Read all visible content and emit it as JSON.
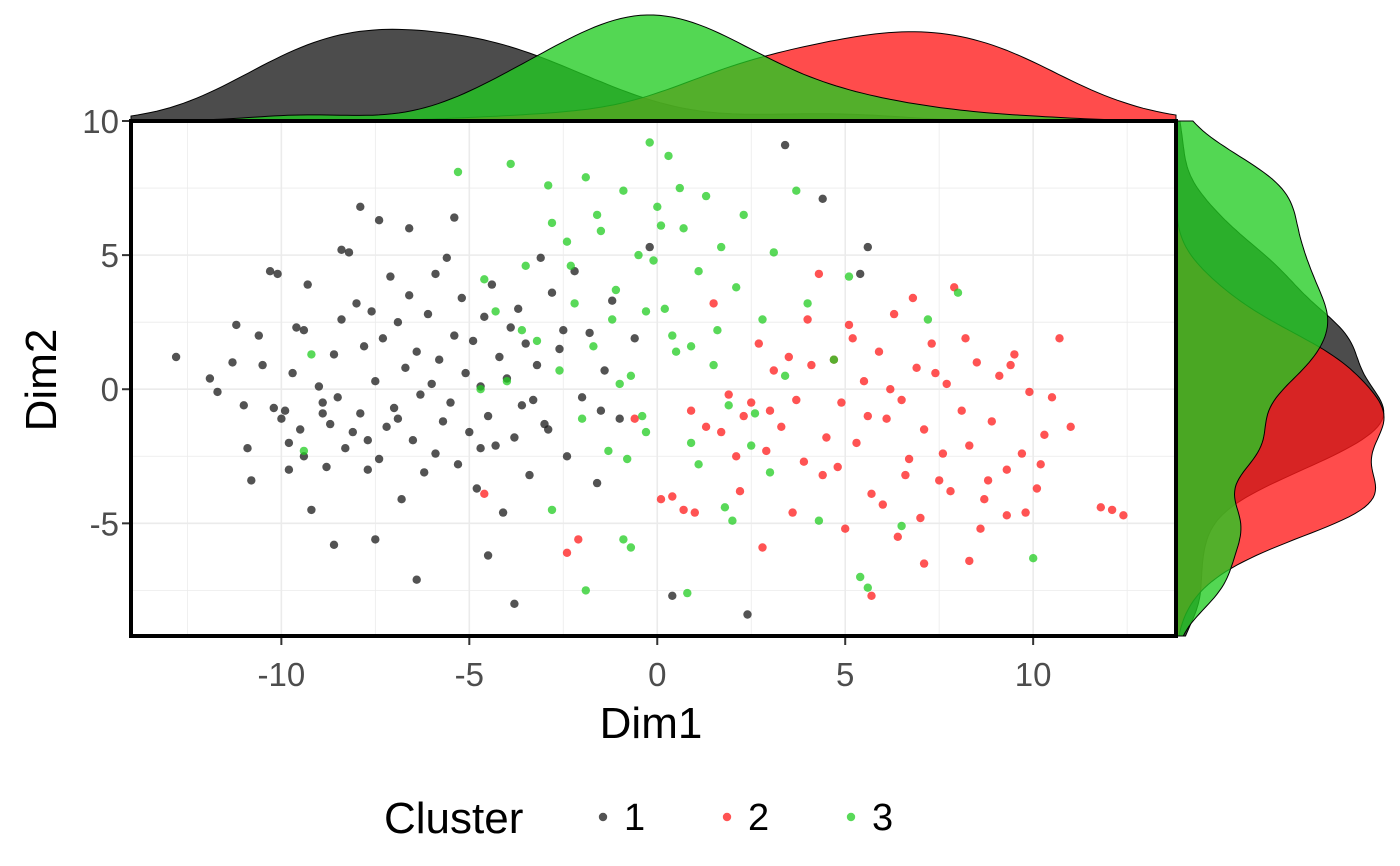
{
  "chart_data": {
    "type": "scatter",
    "title": "",
    "xlabel": "Dim1",
    "ylabel": "Dim2",
    "xlim": [
      -14,
      13.8
    ],
    "ylim": [
      -9.2,
      10
    ],
    "x_ticks": [
      -10,
      -5,
      0,
      5,
      10
    ],
    "x_tick_labels": [
      "-10",
      "-5",
      "0",
      "5",
      "10"
    ],
    "y_ticks": [
      -5,
      0,
      5,
      10
    ],
    "y_tick_labels": [
      "-5",
      "0",
      "5",
      "10"
    ],
    "grid": true,
    "marginal_density": {
      "top": true,
      "right": true
    },
    "legend": {
      "title": "Cluster",
      "position": "bottom",
      "entries": [
        "1",
        "2",
        "3"
      ]
    },
    "series": [
      {
        "name": "1",
        "color": "#1a1a1a",
        "points": [
          [
            -12.8,
            1.2
          ],
          [
            -11.9,
            0.4
          ],
          [
            -11.7,
            -0.1
          ],
          [
            -11.3,
            1.0
          ],
          [
            -11.2,
            2.4
          ],
          [
            -11.0,
            -0.6
          ],
          [
            -10.9,
            -2.2
          ],
          [
            -10.8,
            -3.4
          ],
          [
            -10.6,
            2.0
          ],
          [
            -10.5,
            0.9
          ],
          [
            -10.3,
            4.4
          ],
          [
            -10.1,
            4.3
          ],
          [
            -10.0,
            -1.1
          ],
          [
            -9.9,
            -0.8
          ],
          [
            -9.8,
            -2.0
          ],
          [
            -9.7,
            0.6
          ],
          [
            -9.6,
            2.3
          ],
          [
            -9.5,
            -1.5
          ],
          [
            -9.4,
            2.2
          ],
          [
            -9.3,
            3.9
          ],
          [
            -9.2,
            -4.5
          ],
          [
            -9.0,
            0.1
          ],
          [
            -8.9,
            -0.5
          ],
          [
            -8.8,
            -2.9
          ],
          [
            -8.7,
            -1.3
          ],
          [
            -8.6,
            1.3
          ],
          [
            -8.5,
            -0.3
          ],
          [
            -8.4,
            2.6
          ],
          [
            -8.3,
            -2.2
          ],
          [
            -8.2,
            5.1
          ],
          [
            -8.1,
            -1.6
          ],
          [
            -8.0,
            3.2
          ],
          [
            -7.9,
            -0.9
          ],
          [
            -7.8,
            1.6
          ],
          [
            -7.7,
            -3.0
          ],
          [
            -7.6,
            2.9
          ],
          [
            -7.5,
            0.3
          ],
          [
            -7.4,
            -2.6
          ],
          [
            -7.3,
            1.9
          ],
          [
            -7.2,
            -1.4
          ],
          [
            -7.1,
            4.2
          ],
          [
            -7.0,
            -0.7
          ],
          [
            -6.9,
            2.5
          ],
          [
            -6.8,
            -4.1
          ],
          [
            -6.7,
            0.8
          ],
          [
            -6.6,
            3.5
          ],
          [
            -6.5,
            -1.9
          ],
          [
            -6.4,
            1.4
          ],
          [
            -6.3,
            -0.2
          ],
          [
            -6.2,
            -3.1
          ],
          [
            -6.1,
            2.8
          ],
          [
            -6.0,
            0.2
          ],
          [
            -5.9,
            -2.4
          ],
          [
            -5.8,
            1.1
          ],
          [
            -5.7,
            -1.2
          ],
          [
            -5.6,
            4.9
          ],
          [
            -5.5,
            -0.5
          ],
          [
            -5.4,
            2.0
          ],
          [
            -5.3,
            -2.8
          ],
          [
            -5.2,
            3.4
          ],
          [
            -5.1,
            0.6
          ],
          [
            -5.0,
            -1.6
          ],
          [
            -4.9,
            1.8
          ],
          [
            -4.8,
            -3.7
          ],
          [
            -4.7,
            0.1
          ],
          [
            -4.6,
            2.7
          ],
          [
            -4.5,
            -1.0
          ],
          [
            -4.4,
            3.9
          ],
          [
            -4.3,
            -2.1
          ],
          [
            -4.2,
            1.2
          ],
          [
            -4.1,
            -4.6
          ],
          [
            -4.0,
            0.4
          ],
          [
            -3.9,
            2.3
          ],
          [
            -3.8,
            -1.8
          ],
          [
            -3.7,
            3.0
          ],
          [
            -3.6,
            -0.6
          ],
          [
            -3.5,
            1.7
          ],
          [
            -3.4,
            -3.2
          ],
          [
            -3.2,
            0.9
          ],
          [
            -3.0,
            -1.3
          ],
          [
            -2.8,
            3.6
          ],
          [
            -2.6,
            1.5
          ],
          [
            -2.4,
            -2.5
          ],
          [
            -2.2,
            4.4
          ],
          [
            -2.0,
            -0.3
          ],
          [
            -1.8,
            2.1
          ],
          [
            -1.6,
            -3.5
          ],
          [
            -1.4,
            0.7
          ],
          [
            -1.2,
            3.3
          ],
          [
            -1.0,
            -1.1
          ],
          [
            -0.6,
            1.9
          ],
          [
            -0.2,
            5.3
          ],
          [
            0.4,
            -7.7
          ],
          [
            2.4,
            -8.4
          ],
          [
            3.4,
            9.1
          ],
          [
            4.4,
            7.1
          ],
          [
            5.6,
            5.3
          ],
          [
            5.4,
            4.3
          ],
          [
            -3.8,
            -8.0
          ],
          [
            -4.5,
            -6.2
          ],
          [
            -6.4,
            -7.1
          ],
          [
            -7.5,
            -5.6
          ],
          [
            -8.6,
            -5.8
          ],
          [
            -7.9,
            6.8
          ],
          [
            -7.4,
            6.3
          ],
          [
            -5.4,
            6.4
          ],
          [
            -6.6,
            6.0
          ],
          [
            -8.4,
            5.2
          ],
          [
            -5.9,
            4.3
          ],
          [
            -3.1,
            4.9
          ],
          [
            -2.5,
            2.2
          ],
          [
            -3.3,
            -0.4
          ],
          [
            -1.5,
            -0.8
          ],
          [
            -2.9,
            -1.5
          ],
          [
            -4.7,
            -2.2
          ],
          [
            -6.9,
            -1.1
          ],
          [
            -7.7,
            -1.9
          ],
          [
            -8.9,
            -0.9
          ],
          [
            -9.4,
            -2.5
          ],
          [
            -10.2,
            -0.7
          ],
          [
            -9.8,
            -3.0
          ]
        ]
      },
      {
        "name": "2",
        "color": "#ff1a1a",
        "points": [
          [
            -4.6,
            -3.9
          ],
          [
            -2.4,
            -6.1
          ],
          [
            -2.1,
            -5.6
          ],
          [
            -0.6,
            -1.1
          ],
          [
            0.1,
            -4.1
          ],
          [
            0.4,
            -4.0
          ],
          [
            0.7,
            -4.5
          ],
          [
            0.9,
            -0.8
          ],
          [
            1.3,
            -1.4
          ],
          [
            1.5,
            3.2
          ],
          [
            1.7,
            -1.6
          ],
          [
            1.9,
            -0.2
          ],
          [
            2.1,
            -2.5
          ],
          [
            2.3,
            -1.0
          ],
          [
            2.5,
            -0.5
          ],
          [
            2.7,
            1.7
          ],
          [
            2.9,
            -2.3
          ],
          [
            3.1,
            0.7
          ],
          [
            3.3,
            -1.4
          ],
          [
            3.5,
            1.2
          ],
          [
            3.7,
            -0.4
          ],
          [
            3.9,
            -2.7
          ],
          [
            4.1,
            0.9
          ],
          [
            4.3,
            4.3
          ],
          [
            4.5,
            -1.8
          ],
          [
            4.7,
            1.1
          ],
          [
            4.9,
            -0.5
          ],
          [
            5.1,
            2.4
          ],
          [
            5.3,
            -2.0
          ],
          [
            5.5,
            0.3
          ],
          [
            5.7,
            -3.9
          ],
          [
            5.9,
            1.4
          ],
          [
            6.1,
            -1.1
          ],
          [
            6.3,
            2.8
          ],
          [
            6.5,
            -0.4
          ],
          [
            6.7,
            -2.6
          ],
          [
            6.9,
            0.8
          ],
          [
            7.1,
            -1.5
          ],
          [
            7.3,
            1.7
          ],
          [
            7.5,
            -3.4
          ],
          [
            7.7,
            0.2
          ],
          [
            7.9,
            3.8
          ],
          [
            8.1,
            -0.8
          ],
          [
            8.3,
            -2.1
          ],
          [
            8.5,
            1.0
          ],
          [
            8.7,
            -4.1
          ],
          [
            8.9,
            -1.2
          ],
          [
            9.1,
            0.5
          ],
          [
            9.3,
            -3.0
          ],
          [
            9.5,
            1.3
          ],
          [
            9.7,
            -2.4
          ],
          [
            9.9,
            -0.1
          ],
          [
            10.1,
            -3.7
          ],
          [
            10.3,
            -1.7
          ],
          [
            10.5,
            -0.3
          ],
          [
            10.7,
            1.9
          ],
          [
            11.0,
            -1.4
          ],
          [
            11.8,
            -4.4
          ],
          [
            12.1,
            -4.5
          ],
          [
            12.4,
            -4.7
          ],
          [
            5.7,
            -7.7
          ],
          [
            7.1,
            -6.5
          ],
          [
            8.3,
            -6.4
          ],
          [
            9.3,
            -4.7
          ],
          [
            6.4,
            -5.5
          ],
          [
            5.0,
            -5.2
          ],
          [
            4.4,
            -3.2
          ],
          [
            3.6,
            -4.6
          ],
          [
            2.8,
            -5.9
          ],
          [
            1.0,
            -4.6
          ],
          [
            6.6,
            -3.2
          ],
          [
            7.8,
            -3.8
          ],
          [
            8.6,
            -5.2
          ],
          [
            9.8,
            -4.6
          ],
          [
            6.2,
            0.0
          ],
          [
            7.4,
            0.6
          ],
          [
            8.2,
            1.9
          ],
          [
            6.8,
            3.4
          ],
          [
            5.2,
            1.9
          ],
          [
            4.0,
            2.6
          ],
          [
            9.4,
            0.9
          ],
          [
            10.2,
            -2.8
          ],
          [
            3.0,
            -0.8
          ],
          [
            2.2,
            -3.8
          ],
          [
            4.8,
            -2.9
          ],
          [
            5.6,
            -1.0
          ],
          [
            7.6,
            -2.4
          ],
          [
            8.8,
            -3.4
          ],
          [
            6.0,
            -4.3
          ],
          [
            7.0,
            -4.8
          ]
        ]
      },
      {
        "name": "3",
        "color": "#22cc22",
        "points": [
          [
            -9.2,
            1.3
          ],
          [
            -9.4,
            -2.3
          ],
          [
            -5.3,
            8.1
          ],
          [
            -4.6,
            4.1
          ],
          [
            -4.3,
            2.9
          ],
          [
            -4.0,
            0.3
          ],
          [
            -3.9,
            8.4
          ],
          [
            -3.5,
            4.6
          ],
          [
            -3.2,
            1.8
          ],
          [
            -2.9,
            7.6
          ],
          [
            -2.8,
            -4.5
          ],
          [
            -2.6,
            0.7
          ],
          [
            -2.4,
            5.5
          ],
          [
            -2.2,
            3.2
          ],
          [
            -2.0,
            -1.1
          ],
          [
            -1.9,
            7.9
          ],
          [
            -1.7,
            1.6
          ],
          [
            -1.5,
            5.9
          ],
          [
            -1.3,
            -2.3
          ],
          [
            -1.1,
            3.7
          ],
          [
            -0.9,
            7.4
          ],
          [
            -0.7,
            0.5
          ],
          [
            -0.5,
            5.0
          ],
          [
            -0.3,
            -1.6
          ],
          [
            -0.2,
            9.2
          ],
          [
            0.0,
            6.8
          ],
          [
            0.2,
            3.0
          ],
          [
            0.3,
            8.7
          ],
          [
            0.5,
            1.4
          ],
          [
            0.7,
            6.0
          ],
          [
            0.9,
            -2.0
          ],
          [
            1.1,
            4.4
          ],
          [
            1.3,
            7.2
          ],
          [
            1.5,
            0.9
          ],
          [
            1.7,
            5.3
          ],
          [
            1.9,
            -0.6
          ],
          [
            2.1,
            3.8
          ],
          [
            2.3,
            6.5
          ],
          [
            2.5,
            -2.1
          ],
          [
            2.8,
            2.6
          ],
          [
            3.1,
            5.1
          ],
          [
            3.4,
            0.5
          ],
          [
            3.7,
            7.4
          ],
          [
            4.0,
            3.2
          ],
          [
            4.3,
            -4.9
          ],
          [
            4.7,
            1.1
          ],
          [
            5.1,
            4.2
          ],
          [
            5.4,
            -7.0
          ],
          [
            5.6,
            -7.4
          ],
          [
            6.5,
            -5.1
          ],
          [
            7.2,
            2.6
          ],
          [
            8.0,
            3.6
          ],
          [
            10.0,
            -6.3
          ],
          [
            -0.9,
            -5.6
          ],
          [
            -0.7,
            -5.9
          ],
          [
            -1.9,
            -7.5
          ],
          [
            0.8,
            -7.6
          ],
          [
            2.0,
            -4.9
          ],
          [
            1.1,
            -2.8
          ],
          [
            -0.4,
            -1.0
          ],
          [
            0.4,
            2.0
          ],
          [
            -1.2,
            2.6
          ],
          [
            -2.8,
            6.2
          ],
          [
            0.1,
            6.1
          ],
          [
            0.6,
            7.5
          ],
          [
            -0.1,
            4.8
          ],
          [
            -0.8,
            -2.6
          ],
          [
            1.6,
            2.2
          ],
          [
            -1.6,
            6.5
          ],
          [
            -2.3,
            4.6
          ],
          [
            -3.6,
            2.2
          ],
          [
            -4.7,
            0.0
          ],
          [
            2.6,
            -0.9
          ],
          [
            3.0,
            -3.1
          ],
          [
            1.8,
            -4.4
          ],
          [
            -0.3,
            2.9
          ],
          [
            0.9,
            1.6
          ],
          [
            -1.0,
            0.2
          ]
        ]
      }
    ]
  }
}
